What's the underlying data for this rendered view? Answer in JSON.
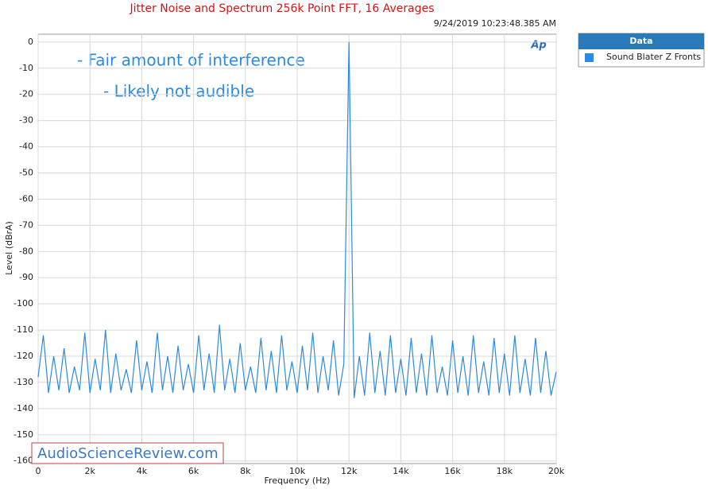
{
  "chart_data": {
    "type": "line",
    "title": "Jitter Noise and Spectrum 256k Point FFT, 16 Averages",
    "subtitle": "9/24/2019 10:23:48.385 AM",
    "x_label": "Frequency (Hz)",
    "y_label": "Level (dBrA)",
    "annotations": [
      "- Fair amount of interference",
      "- Likely not audible"
    ],
    "logo": "Ap",
    "watermark": "AudioScienceReview.com",
    "legend_title": "Data",
    "legend": "outside-right",
    "grid": true,
    "xlim": [
      0,
      20000
    ],
    "ylim": [
      -161,
      3
    ],
    "xticks": [
      0,
      {
        "value": 2000,
        "label": "2k"
      },
      {
        "value": 4000,
        "label": "4k"
      },
      {
        "value": 6000,
        "label": "6k"
      },
      {
        "value": 8000,
        "label": "8k"
      },
      {
        "value": 10000,
        "label": "10k"
      },
      {
        "value": 12000,
        "label": "12k"
      },
      {
        "value": 14000,
        "label": "14k"
      },
      {
        "value": 16000,
        "label": "16k"
      },
      {
        "value": 18000,
        "label": "18k"
      },
      {
        "value": 20000,
        "label": "20k"
      }
    ],
    "yticks": [
      0,
      -10,
      -20,
      -30,
      -40,
      -50,
      -60,
      -70,
      -80,
      -90,
      -100,
      -110,
      -120,
      -130,
      -140,
      -150,
      -160
    ],
    "x": [
      0,
      200,
      400,
      600,
      800,
      1000,
      1200,
      1400,
      1600,
      1800,
      2000,
      2200,
      2400,
      2600,
      2800,
      3000,
      3200,
      3400,
      3600,
      3800,
      4000,
      4200,
      4400,
      4600,
      4800,
      5000,
      5200,
      5400,
      5600,
      5800,
      6000,
      6200,
      6400,
      6600,
      6800,
      7000,
      7200,
      7400,
      7600,
      7800,
      8000,
      8200,
      8400,
      8600,
      8800,
      9000,
      9200,
      9400,
      9600,
      9800,
      10000,
      10200,
      10400,
      10600,
      10800,
      11000,
      11200,
      11400,
      11600,
      11800,
      12000,
      12200,
      12400,
      12600,
      12800,
      13000,
      13200,
      13400,
      13600,
      13800,
      14000,
      14200,
      14400,
      14600,
      14800,
      15000,
      15200,
      15400,
      15600,
      15800,
      16000,
      16200,
      16400,
      16600,
      16800,
      17000,
      17200,
      17400,
      17600,
      17800,
      18000,
      18200,
      18400,
      18600,
      18800,
      19000,
      19200,
      19400,
      19600,
      19800,
      20000
    ],
    "series": [
      {
        "name": "Sound Blater Z Fronts",
        "color": "#2b8ae6",
        "values": [
          -128,
          -112,
          -134,
          -120,
          -133,
          -117,
          -134,
          -124,
          -133,
          -111,
          -134,
          -121,
          -133,
          -110,
          -134,
          -119,
          -133,
          -125,
          -134,
          -114,
          -133,
          -122,
          -134,
          -111,
          -133,
          -120,
          -134,
          -116,
          -133,
          -123,
          -134,
          -112,
          -133,
          -119,
          -134,
          -108,
          -133,
          -121,
          -134,
          -115,
          -133,
          -124,
          -134,
          -113,
          -133,
          -118,
          -134,
          -112,
          -133,
          -122,
          -134,
          -116,
          -133,
          -111,
          -134,
          -120,
          -133,
          -114,
          -135,
          -123,
          0,
          -136,
          -120,
          -135,
          -111,
          -134,
          -118,
          -135,
          -112,
          -134,
          -121,
          -135,
          -113,
          -134,
          -119,
          -135,
          -112,
          -134,
          -124,
          -135,
          -114,
          -134,
          -120,
          -135,
          -112,
          -134,
          -122,
          -135,
          -113,
          -134,
          -119,
          -135,
          -112,
          -134,
          -121,
          -135,
          -113,
          -134,
          -118,
          -135,
          -126
        ]
      }
    ]
  }
}
